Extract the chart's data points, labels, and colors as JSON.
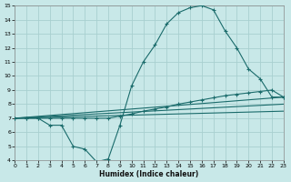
{
  "xlabel": "Humidex (Indice chaleur)",
  "bg_color": "#c8e8e8",
  "grid_color": "#a8d0d0",
  "line_color": "#1a6b6b",
  "xlim": [
    0,
    23
  ],
  "ylim": [
    4,
    15
  ],
  "xticks": [
    0,
    1,
    2,
    3,
    4,
    5,
    6,
    7,
    8,
    9,
    10,
    11,
    12,
    13,
    14,
    15,
    16,
    17,
    18,
    19,
    20,
    21,
    22,
    23
  ],
  "yticks": [
    4,
    5,
    6,
    7,
    8,
    9,
    10,
    11,
    12,
    13,
    14,
    15
  ],
  "line1_x": [
    0,
    1,
    2,
    3,
    4,
    5,
    6,
    7,
    8,
    9,
    10,
    11,
    12,
    13,
    14,
    15,
    16,
    17,
    18,
    19,
    20,
    21,
    22,
    23
  ],
  "line1_y": [
    7.0,
    7.0,
    7.0,
    6.5,
    6.5,
    5.0,
    4.8,
    3.9,
    4.1,
    6.5,
    9.3,
    11.0,
    12.2,
    13.7,
    14.5,
    14.85,
    15.0,
    14.7,
    13.2,
    12.0,
    10.5,
    9.8,
    8.5,
    8.5
  ],
  "line2_x": [
    0,
    1,
    2,
    3,
    4,
    5,
    6,
    7,
    8,
    9,
    10,
    11,
    12,
    13,
    14,
    15,
    16,
    17,
    18,
    19,
    20,
    21,
    22,
    23
  ],
  "line2_y": [
    7.0,
    7.0,
    7.0,
    7.0,
    7.0,
    7.0,
    7.0,
    7.0,
    7.0,
    7.15,
    7.3,
    7.5,
    7.65,
    7.8,
    8.0,
    8.15,
    8.3,
    8.45,
    8.6,
    8.7,
    8.8,
    8.9,
    9.0,
    8.5
  ],
  "line3_x": [
    0,
    23
  ],
  "line3_y": [
    7.0,
    8.5
  ],
  "line4_x": [
    0,
    23
  ],
  "line4_y": [
    7.0,
    8.0
  ],
  "line5_x": [
    0,
    23
  ],
  "line5_y": [
    7.0,
    7.5
  ]
}
